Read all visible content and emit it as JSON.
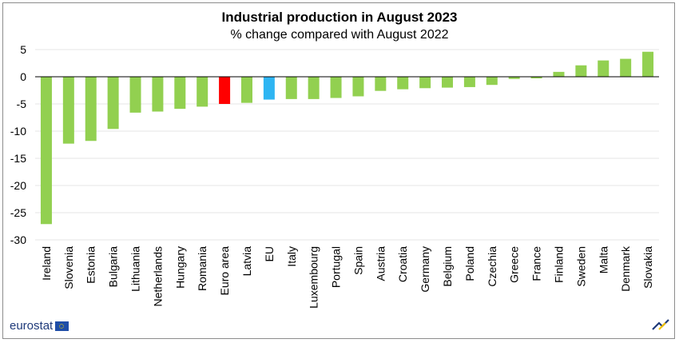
{
  "title": "Industrial production in August 2023",
  "subtitle": "% change compared with August 2022",
  "logo_text": "eurostat",
  "chart_data": {
    "type": "bar",
    "title": "Industrial production in August 2023",
    "subtitle": "% change compared with August 2022",
    "xlabel": "",
    "ylabel": "",
    "ylim": [
      -30,
      5
    ],
    "yticks": [
      5,
      0,
      -5,
      -10,
      -15,
      -20,
      -25,
      -30
    ],
    "grid": true,
    "categories": [
      "Ireland",
      "Slovenia",
      "Estonia",
      "Bulgaria",
      "Lithuania",
      "Netherlands",
      "Hungary",
      "Romania",
      "Euro area",
      "Latvia",
      "EU",
      "Italy",
      "Luxembourg",
      "Portugal",
      "Spain",
      "Austria",
      "Croatia",
      "Germany",
      "Belgium",
      "Poland",
      "Czechia",
      "Greece",
      "France",
      "Finland",
      "Sweden",
      "Malta",
      "Denmark",
      "Slovakia"
    ],
    "values": [
      -27.1,
      -12.3,
      -11.8,
      -9.6,
      -6.6,
      -6.4,
      -5.9,
      -5.5,
      -5.0,
      -4.8,
      -4.2,
      -4.1,
      -4.1,
      -3.9,
      -3.6,
      -2.6,
      -2.3,
      -2.1,
      -2.0,
      -1.9,
      -1.5,
      -0.4,
      -0.3,
      0.9,
      2.1,
      3.0,
      3.3,
      4.6
    ],
    "colors": {
      "default": "#92d050",
      "Euro area": "#ff0000",
      "EU": "#2fb5f2"
    }
  }
}
